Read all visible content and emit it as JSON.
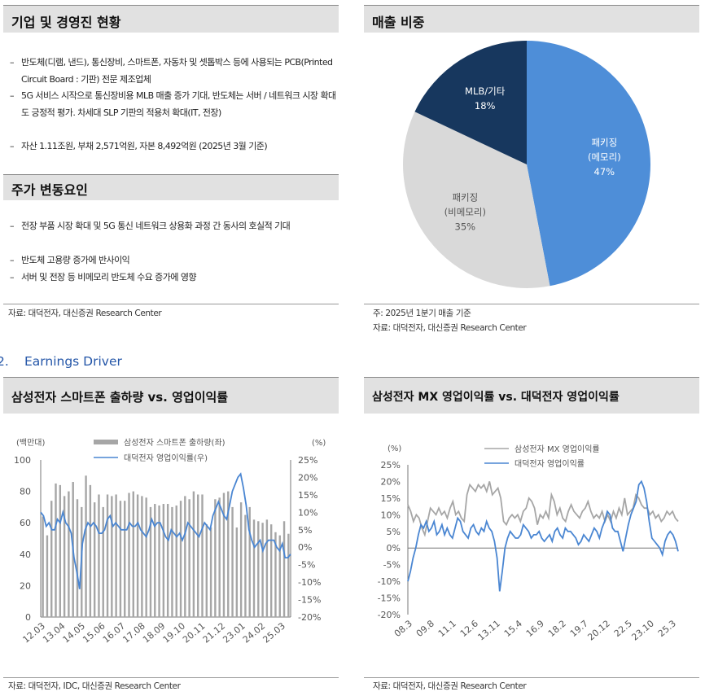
{
  "company": {
    "title": "기업 및 경영진 현황",
    "bullets": [
      "반도체(디램, 낸드), 통신장비, 스마트폰, 자동차 및 셋톱박스 등에 사용되는 PCB(Printed Circuit Board : 기판) 전문 제조업체",
      "5G 서비스 시작으로 통신장비용 MLB 매출 증가 기대, 반도체는 서버 / 네트워크 시장 확대도 긍정적 평가. 차세대 SLP 기판의 적용처 확대(IT, 전장)",
      "자산 1.11조원, 부채 2,571억원, 자본 8,492억원 (2025년 3월 기준)"
    ]
  },
  "drivers": {
    "title": "주가 변동요인",
    "bullets": [
      "전장 부품 시장 확대 및 5G 통신 네트워크 상용화 과정 간 동사의 호실적 기대",
      "반도체 고용량 증가에 반사이익",
      "서버 및 전장 등 비메모리 반도체 수요 증가에 영향"
    ],
    "source": "자료: 대덕전자, 대신증권 Research Center"
  },
  "sales": {
    "title": "매출 비중",
    "note": "주: 2025년 1분기 매출 기준",
    "source": "자료: 대덕전자, 대신증권 Research Center"
  },
  "section2": {
    "number": "2.",
    "title": "Earnings Driver"
  },
  "chart1": {
    "title": "삼성전자 스마트폰 출하량 vs. 영업이익률",
    "source": "자료: 대덕전자, IDC, 대신증권 Research Center"
  },
  "chart2": {
    "title": "삼성전자 MX 영업이익률 vs. 대덕전자 영업이익률",
    "source": "자료: 대덕전자, 대신증권 Research Center"
  },
  "colors": {
    "bar": "#a6a6a6",
    "blue": "#4a86d2",
    "gray_line": "#a6a6a6",
    "pie_blue": "#4e8ed8",
    "pie_gray": "#d9d9d9",
    "pie_navy": "#17375e"
  },
  "chart_data": [
    {
      "type": "pie",
      "slices": [
        {
          "name": "패키징\n(메모리)",
          "value": 47,
          "label": "47%"
        },
        {
          "name": "패키징\n(비메모리)",
          "value": 35,
          "label": "35%"
        },
        {
          "name": "MLB/기타",
          "value": 18,
          "label": "18%"
        }
      ]
    },
    {
      "type": "bar",
      "left_unit": "(백만대)",
      "right_unit": "(%)",
      "left_ticks": [
        "100",
        "80",
        "60",
        "40",
        "20",
        "0"
      ],
      "right_ticks": [
        "25%",
        "20%",
        "15%",
        "10%",
        "5%",
        "0%",
        "-5%",
        "-10%",
        "-15%",
        "-20%"
      ],
      "ylim_left": [
        0,
        100
      ],
      "ylim_right": [
        -20,
        25
      ],
      "x_ticks": [
        "12.03",
        "13.04",
        "14.05",
        "15.06",
        "16.07",
        "17.08",
        "18.09",
        "19.10",
        "20.11",
        "21.12",
        "23.01",
        "24.02",
        "25.03"
      ],
      "series": [
        {
          "name": "삼성전자 스마트폰 출하량(좌)",
          "type": "bar",
          "values": [
            64,
            52,
            74,
            85,
            84,
            77,
            80,
            86,
            75,
            70,
            90,
            84,
            73,
            78,
            70,
            78,
            77,
            78,
            74,
            74,
            79,
            80,
            78,
            77,
            76,
            70,
            72,
            71,
            72,
            72,
            70,
            71,
            74,
            77,
            75,
            80,
            78,
            78,
            59,
            57,
            75,
            76,
            79,
            80,
            70,
            57,
            73,
            65,
            70,
            62,
            61,
            60,
            62,
            59,
            54,
            52,
            61,
            53
          ]
        },
        {
          "name": "대덕전자 영업이익률(우)",
          "type": "line",
          "values": [
            10,
            9,
            6,
            7,
            5,
            5,
            8,
            7,
            10,
            7,
            6,
            4,
            -3,
            -7,
            -12,
            1,
            5,
            7,
            6,
            7,
            6,
            4,
            4,
            5,
            8,
            9,
            6,
            7,
            6,
            5,
            5,
            5,
            7,
            6,
            6,
            7,
            5,
            4,
            3,
            5,
            8,
            6,
            7,
            7,
            5,
            3,
            2,
            5,
            4,
            3,
            4,
            2,
            4,
            7,
            6,
            5,
            4,
            3,
            5,
            7,
            6,
            5,
            9,
            11,
            13,
            11,
            9,
            8,
            12,
            16,
            18,
            20,
            21,
            17,
            12,
            5,
            2,
            0,
            1,
            2,
            -1,
            1,
            2,
            2,
            2,
            0,
            -1,
            1,
            -3,
            -3,
            -2
          ]
        }
      ]
    },
    {
      "type": "line",
      "y_unit": "(%)",
      "y_ticks": [
        "25%",
        "20%",
        "15%",
        "10%",
        "5%",
        "0%",
        "-5%",
        "-10%",
        "-15%",
        "-20%"
      ],
      "ylim": [
        -20,
        25
      ],
      "x_ticks": [
        "08.3",
        "09.8",
        "11.1",
        "12.6",
        "13.11",
        "15.4",
        "16.9",
        "18.2",
        "19.7",
        "20.12",
        "22.5",
        "23.10",
        "25.3"
      ],
      "series": [
        {
          "name": "삼성전자 MX 영업이익률",
          "values": [
            13,
            11,
            8,
            10,
            9,
            6,
            4,
            8,
            12,
            11,
            10,
            12,
            10,
            11,
            9,
            12,
            14,
            10,
            11,
            9,
            8,
            16,
            19,
            18,
            17,
            19,
            18,
            19,
            17,
            20,
            16,
            17,
            18,
            15,
            8,
            7,
            9,
            10,
            9,
            10,
            8,
            11,
            12,
            15,
            14,
            12,
            7,
            10,
            9,
            11,
            9,
            16,
            14,
            10,
            12,
            9,
            8,
            11,
            13,
            11,
            10,
            9,
            11,
            12,
            14,
            11,
            9,
            10,
            9,
            11,
            8,
            10,
            8,
            11,
            9,
            12,
            10,
            15,
            10,
            11,
            12,
            16,
            15,
            13,
            12,
            12,
            10,
            11,
            9,
            10,
            8,
            9,
            11,
            10,
            11,
            9,
            8
          ]
        },
        {
          "name": "대덕전자 영업이익률",
          "values": [
            -10,
            -7,
            -3,
            0,
            4,
            7,
            6,
            8,
            5,
            6,
            8,
            4,
            5,
            7,
            4,
            6,
            4,
            3,
            6,
            9,
            8,
            5,
            4,
            3,
            6,
            7,
            5,
            4,
            6,
            5,
            8,
            6,
            5,
            2,
            -3,
            -13,
            -7,
            0,
            3,
            5,
            4,
            3,
            3,
            4,
            7,
            6,
            5,
            3,
            4,
            4,
            5,
            3,
            2,
            3,
            4,
            2,
            5,
            6,
            4,
            3,
            6,
            5,
            5,
            4,
            3,
            1,
            2,
            4,
            3,
            2,
            4,
            6,
            5,
            3,
            6,
            8,
            11,
            10,
            6,
            5,
            5,
            2,
            -1,
            3,
            7,
            10,
            12,
            14,
            19,
            20,
            18,
            14,
            8,
            3,
            2,
            1,
            0,
            -2,
            2,
            4,
            5,
            4,
            2,
            -1
          ]
        }
      ]
    }
  ]
}
